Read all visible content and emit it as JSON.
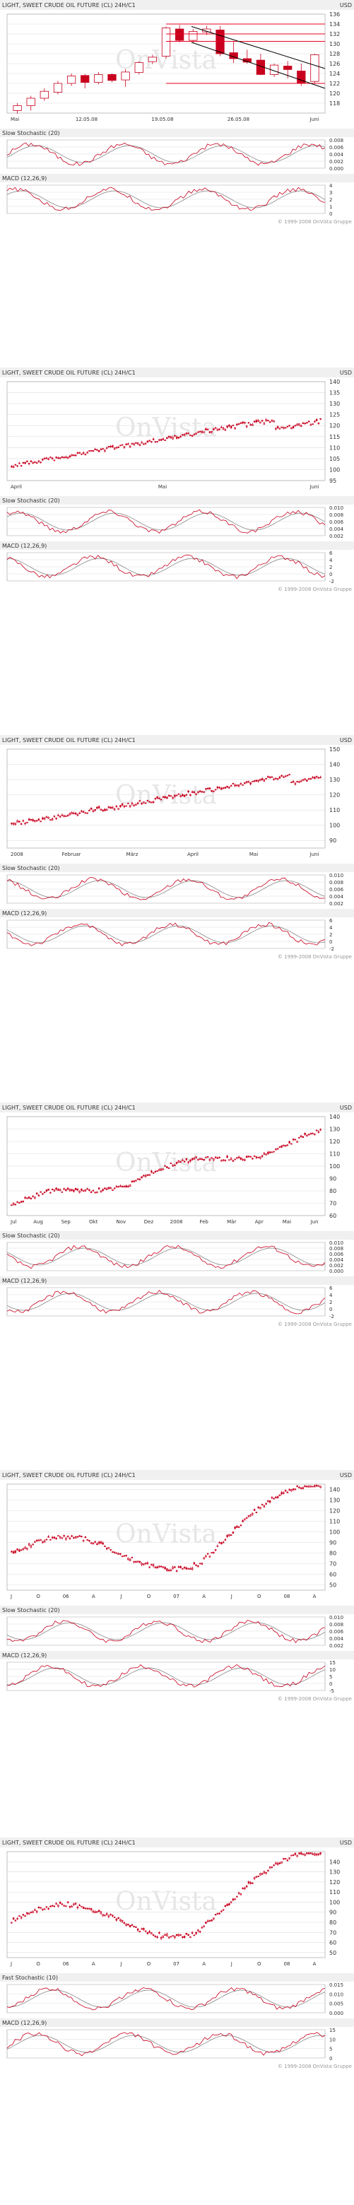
{
  "page": {
    "copyright": "© 1999-2008 OnVista Gruppe",
    "watermark": "OnVista"
  },
  "colors": {
    "up": "#c8001e",
    "down": "#c8001e",
    "price_line": "#e8001e",
    "channel": "#000000",
    "signal": "#888888",
    "main": "#c8001e",
    "grid": "#dddddd",
    "panel_header": "#f0f0f0"
  },
  "chart_data": [
    {
      "type": "candlestick",
      "period": "1 Monat",
      "title": "LIGHT, SWEET CRUDE OIL FUTURE (CL) 24H/C1",
      "currency": "USD",
      "ylim": [
        116,
        136
      ],
      "yticks": [
        118,
        120,
        122,
        124,
        126,
        128,
        130,
        132,
        134,
        136
      ],
      "xticklabels": [
        "Mai",
        "12.05.08",
        "19.05.08",
        "26.05.08",
        "Juni"
      ],
      "candles": [
        {
          "o": 116.5,
          "h": 118.0,
          "l": 115.9,
          "c": 117.5
        },
        {
          "o": 117.5,
          "h": 119.5,
          "l": 116.5,
          "c": 119.0
        },
        {
          "o": 119.0,
          "h": 121.0,
          "l": 118.5,
          "c": 120.4
        },
        {
          "o": 120.2,
          "h": 122.5,
          "l": 119.8,
          "c": 122.0
        },
        {
          "o": 122.0,
          "h": 124.0,
          "l": 121.5,
          "c": 123.5
        },
        {
          "o": 123.6,
          "h": 123.9,
          "l": 121.0,
          "c": 122.2
        },
        {
          "o": 122.2,
          "h": 124.3,
          "l": 121.8,
          "c": 123.8
        },
        {
          "o": 123.8,
          "h": 124.0,
          "l": 122.2,
          "c": 122.6
        },
        {
          "o": 122.7,
          "h": 124.9,
          "l": 121.3,
          "c": 124.3
        },
        {
          "o": 124.2,
          "h": 126.5,
          "l": 123.8,
          "c": 126.2
        },
        {
          "o": 126.4,
          "h": 127.8,
          "l": 125.9,
          "c": 127.3
        },
        {
          "o": 127.5,
          "h": 133.5,
          "l": 127.0,
          "c": 133.2
        },
        {
          "o": 133.0,
          "h": 133.8,
          "l": 130.3,
          "c": 130.7
        },
        {
          "o": 130.7,
          "h": 133.0,
          "l": 130.2,
          "c": 132.5
        },
        {
          "o": 132.4,
          "h": 133.6,
          "l": 131.8,
          "c": 133.0
        },
        {
          "o": 132.8,
          "h": 133.6,
          "l": 127.5,
          "c": 128.0
        },
        {
          "o": 128.2,
          "h": 130.5,
          "l": 126.1,
          "c": 127.0
        },
        {
          "o": 127.0,
          "h": 128.8,
          "l": 126.0,
          "c": 126.3
        },
        {
          "o": 126.7,
          "h": 128.0,
          "l": 123.7,
          "c": 123.8
        },
        {
          "o": 123.8,
          "h": 126.0,
          "l": 123.3,
          "c": 125.7
        },
        {
          "o": 125.5,
          "h": 126.5,
          "l": 123.0,
          "c": 124.8
        },
        {
          "o": 124.5,
          "h": 126.0,
          "l": 121.5,
          "c": 122.0
        },
        {
          "o": 122.4,
          "h": 128.0,
          "l": 122.0,
          "c": 127.8
        }
      ],
      "lines": [
        {
          "kind": "resistance",
          "y": [
            134.0,
            134.0
          ],
          "color": "red"
        },
        {
          "kind": "resistance",
          "y": [
            132.0,
            132.0
          ],
          "color": "red"
        },
        {
          "kind": "resistance",
          "y": [
            130.5,
            130.5
          ],
          "color": "red"
        },
        {
          "kind": "support",
          "y": [
            122.0,
            122.0
          ],
          "color": "red"
        },
        {
          "kind": "channel",
          "y": [
            133.5,
            125.0
          ],
          "color": "black"
        },
        {
          "kind": "channel",
          "y": [
            130.3,
            121.0
          ],
          "color": "black"
        }
      ],
      "indicators": [
        {
          "name": "Slow Stochastic (20)",
          "yticks": [
            "0.008",
            "0.006",
            "0.004",
            "0.002",
            "0.000"
          ]
        },
        {
          "name": "MACD (12,26,9)",
          "yticks": [
            "4",
            "3",
            "2",
            "1",
            "0"
          ]
        }
      ]
    },
    {
      "type": "candlestick",
      "period": "3 Monate",
      "title": "LIGHT, SWEET CRUDE OIL FUTURE (CL) 24H/C1",
      "currency": "USD",
      "ylim": [
        95,
        140
      ],
      "yticks": [
        95,
        100,
        105,
        110,
        115,
        120,
        125,
        130,
        135,
        140
      ],
      "xticklabels": [
        "April",
        "Mai",
        "Juni"
      ],
      "indicators": [
        {
          "name": "Slow Stochastic (20)",
          "yticks": [
            "0.010",
            "0.008",
            "0.006",
            "0.004",
            "0.002"
          ]
        },
        {
          "name": "MACD (12,26,9)",
          "yticks": [
            "6",
            "4",
            "2",
            "0",
            "-2"
          ]
        }
      ]
    },
    {
      "type": "candlestick",
      "period": "6 Monate",
      "title": "LIGHT, SWEET CRUDE OIL FUTURE (CL) 24H/C1",
      "currency": "USD",
      "ylim": [
        85,
        150
      ],
      "yticks": [
        90,
        100,
        110,
        120,
        130,
        140,
        150
      ],
      "xticklabels": [
        "2008",
        "Februar",
        "März",
        "April",
        "Mai",
        "Juni"
      ],
      "indicators": [
        {
          "name": "Slow Stochastic (20)",
          "yticks": [
            "0.010",
            "0.008",
            "0.006",
            "0.004",
            "0.002"
          ]
        },
        {
          "name": "MACD (12,26,9)",
          "yticks": [
            "6",
            "4",
            "2",
            "0",
            "-2"
          ]
        }
      ]
    },
    {
      "type": "candlestick",
      "period": "1 Jahr",
      "title": "LIGHT, SWEET CRUDE OIL FUTURE (CL) 24H/C1",
      "currency": "USD",
      "ylim": [
        60,
        140
      ],
      "yticks": [
        60,
        70,
        80,
        90,
        100,
        110,
        120,
        130,
        140
      ],
      "xticklabels": [
        "Jul",
        "Aug",
        "Sep",
        "Okt",
        "Nov",
        "Dez",
        "2008",
        "Feb",
        "Mär",
        "Apr",
        "Mai",
        "Jun"
      ],
      "indicators": [
        {
          "name": "Slow Stochastic (20)",
          "yticks": [
            "0.010",
            "0.008",
            "0.006",
            "0.004",
            "0.002",
            "0.000"
          ]
        },
        {
          "name": "MACD (12,26,9)",
          "yticks": [
            "6",
            "4",
            "2",
            "0",
            "-2"
          ]
        }
      ]
    },
    {
      "type": "candlestick",
      "period": "2 Jahre",
      "title": "LIGHT, SWEET CRUDE OIL FUTURE (CL) 24H/C1",
      "currency": "USD",
      "ylim": [
        45,
        145
      ],
      "yticks": [
        50,
        60,
        70,
        80,
        90,
        100,
        110,
        120,
        130,
        140
      ],
      "xticklabels": [
        "J",
        "O",
        "06",
        "A",
        "J",
        "O",
        "07",
        "A",
        "J",
        "O",
        "08",
        "A"
      ],
      "indicators": [
        {
          "name": "Slow Stochastic (20)",
          "yticks": [
            "0.010",
            "0.008",
            "0.006",
            "0.004",
            "0.002"
          ]
        },
        {
          "name": "MACD (12,26,9)",
          "yticks": [
            "15",
            "10",
            "5",
            "0",
            "-5"
          ]
        }
      ]
    },
    {
      "type": "candlestick",
      "period": "3 Jahre",
      "title": "LIGHT, SWEET CRUDE OIL FUTURE (CL) 24H/C1",
      "currency": "USD",
      "ylim": [
        45,
        150
      ],
      "yticks": [
        50,
        60,
        70,
        80,
        90,
        100,
        110,
        120,
        130,
        140
      ],
      "xticklabels": [
        "J",
        "O",
        "06",
        "A",
        "J",
        "O",
        "07",
        "A",
        "J",
        "O",
        "08",
        "A"
      ],
      "indicators": [
        {
          "name": "Fast Stochastic (10)",
          "yticks": [
            "0.015",
            "0.010",
            "0.005",
            "0.000"
          ]
        },
        {
          "name": "MACD (12,26,9)",
          "yticks": [
            "15",
            "10",
            "5",
            "0"
          ]
        }
      ]
    }
  ]
}
